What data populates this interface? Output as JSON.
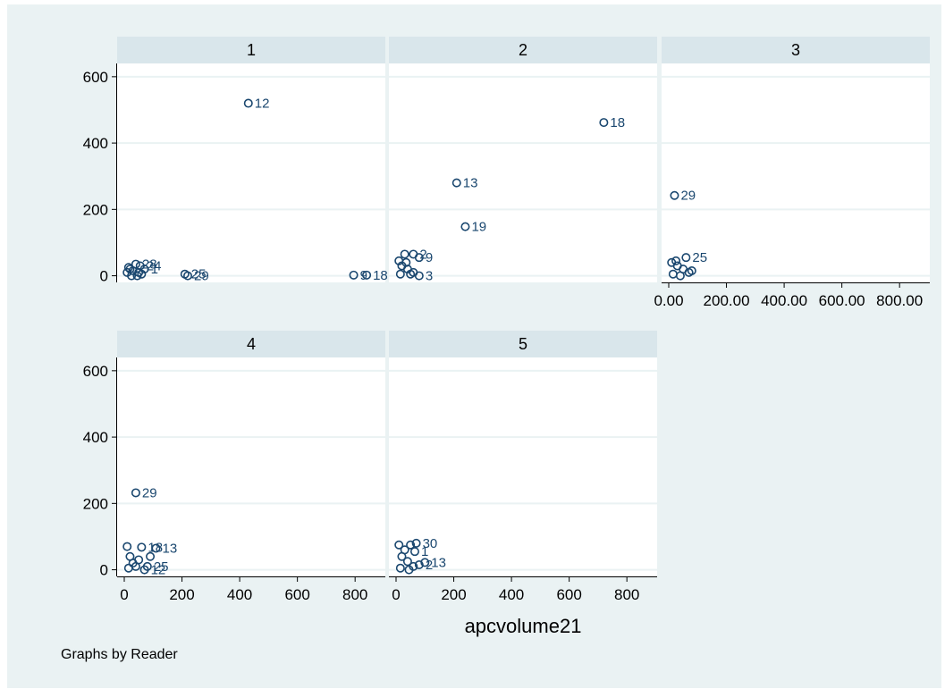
{
  "chart_data": {
    "type": "scatter",
    "by_variable_note": "Graphs by Reader",
    "xlabel": "apcvolume21",
    "ylabel": "",
    "xlim": [
      0,
      880
    ],
    "ylim": [
      -20,
      640
    ],
    "y_ticks": [
      0,
      200,
      400,
      600
    ],
    "x_ticks": [
      0,
      200,
      400,
      600,
      800
    ],
    "x_tick_labels_numeric": [
      "0",
      "200",
      "400",
      "600",
      "800"
    ],
    "x_tick_labels_decimal": [
      "0.00",
      "200.00",
      "400.00",
      "600.00",
      "800.00"
    ],
    "grid": true,
    "marker": "hollow-circle",
    "marker_color": "#1a476f",
    "panels": [
      {
        "label": "1",
        "points": [
          {
            "x": 430,
            "y": 520,
            "label": "12"
          },
          {
            "x": 210,
            "y": 5,
            "label": "25"
          },
          {
            "x": 220,
            "y": 0,
            "label": "29"
          },
          {
            "x": 795,
            "y": 2,
            "label": "9"
          },
          {
            "x": 840,
            "y": 2,
            "label": "18"
          },
          {
            "x": 40,
            "y": 35,
            "label": "28"
          },
          {
            "x": 55,
            "y": 30,
            "label": "24"
          },
          {
            "x": 20,
            "y": 20,
            "label": ""
          },
          {
            "x": 10,
            "y": 10,
            "label": ""
          },
          {
            "x": 30,
            "y": 15,
            "label": ""
          },
          {
            "x": 60,
            "y": 5,
            "label": ""
          },
          {
            "x": 45,
            "y": 0,
            "label": ""
          },
          {
            "x": 15,
            "y": 25,
            "label": ""
          },
          {
            "x": 70,
            "y": 20,
            "label": "1"
          },
          {
            "x": 25,
            "y": 0,
            "label": ""
          },
          {
            "x": 50,
            "y": 10,
            "label": ""
          }
        ]
      },
      {
        "label": "2",
        "points": [
          {
            "x": 720,
            "y": 462,
            "label": "18"
          },
          {
            "x": 210,
            "y": 280,
            "label": "13"
          },
          {
            "x": 240,
            "y": 148,
            "label": "19"
          },
          {
            "x": 30,
            "y": 65,
            "label": ""
          },
          {
            "x": 60,
            "y": 65,
            "label": "2"
          },
          {
            "x": 80,
            "y": 55,
            "label": "9"
          },
          {
            "x": 10,
            "y": 45,
            "label": ""
          },
          {
            "x": 20,
            "y": 30,
            "label": ""
          },
          {
            "x": 40,
            "y": 20,
            "label": ""
          },
          {
            "x": 60,
            "y": 10,
            "label": ""
          },
          {
            "x": 80,
            "y": 0,
            "label": "3"
          },
          {
            "x": 50,
            "y": 5,
            "label": ""
          },
          {
            "x": 15,
            "y": 5,
            "label": ""
          },
          {
            "x": 35,
            "y": 40,
            "label": ""
          }
        ]
      },
      {
        "label": "3",
        "points": [
          {
            "x": 20,
            "y": 242,
            "label": "29"
          },
          {
            "x": 60,
            "y": 55,
            "label": "25"
          },
          {
            "x": 10,
            "y": 40,
            "label": ""
          },
          {
            "x": 30,
            "y": 30,
            "label": ""
          },
          {
            "x": 50,
            "y": 20,
            "label": ""
          },
          {
            "x": 70,
            "y": 10,
            "label": ""
          },
          {
            "x": 15,
            "y": 5,
            "label": ""
          },
          {
            "x": 40,
            "y": 0,
            "label": ""
          },
          {
            "x": 80,
            "y": 15,
            "label": ""
          },
          {
            "x": 25,
            "y": 45,
            "label": ""
          }
        ]
      },
      {
        "label": "4",
        "points": [
          {
            "x": 40,
            "y": 232,
            "label": "29"
          },
          {
            "x": 110,
            "y": 65,
            "label": "13"
          },
          {
            "x": 60,
            "y": 68,
            "label": "18"
          },
          {
            "x": 10,
            "y": 70,
            "label": ""
          },
          {
            "x": 80,
            "y": 10,
            "label": "25"
          },
          {
            "x": 70,
            "y": 0,
            "label": "12"
          },
          {
            "x": 20,
            "y": 40,
            "label": ""
          },
          {
            "x": 30,
            "y": 20,
            "label": ""
          },
          {
            "x": 50,
            "y": 30,
            "label": ""
          },
          {
            "x": 15,
            "y": 5,
            "label": ""
          },
          {
            "x": 40,
            "y": 10,
            "label": ""
          },
          {
            "x": 90,
            "y": 40,
            "label": ""
          }
        ]
      },
      {
        "label": "5",
        "points": [
          {
            "x": 70,
            "y": 80,
            "label": "30"
          },
          {
            "x": 50,
            "y": 75,
            "label": ""
          },
          {
            "x": 100,
            "y": 22,
            "label": "13"
          },
          {
            "x": 80,
            "y": 15,
            "label": "2"
          },
          {
            "x": 10,
            "y": 75,
            "label": ""
          },
          {
            "x": 30,
            "y": 60,
            "label": ""
          },
          {
            "x": 20,
            "y": 40,
            "label": ""
          },
          {
            "x": 40,
            "y": 25,
            "label": ""
          },
          {
            "x": 60,
            "y": 10,
            "label": ""
          },
          {
            "x": 15,
            "y": 5,
            "label": ""
          },
          {
            "x": 45,
            "y": 0,
            "label": ""
          },
          {
            "x": 65,
            "y": 55,
            "label": "1"
          }
        ]
      }
    ]
  }
}
